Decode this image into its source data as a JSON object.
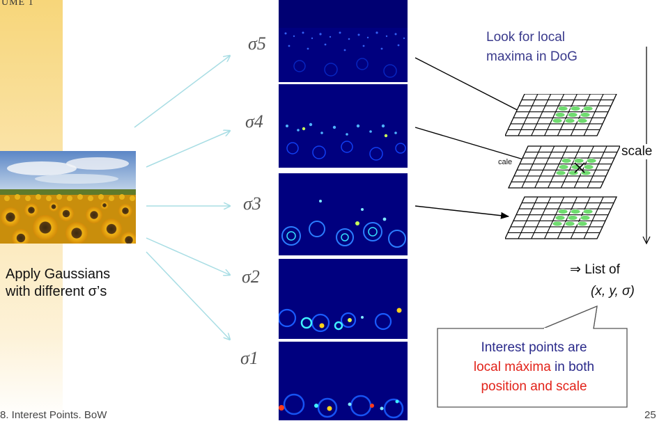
{
  "slide": {
    "header_fragment": "UME 1",
    "footer": "8. Interest Points. BoW",
    "page_number": "25"
  },
  "left": {
    "apply_line1": "Apply Gaussians",
    "apply_line2": "with different σ’s"
  },
  "scales": {
    "sigma5": "σ5",
    "sigma4": "σ4",
    "sigma3": "σ3",
    "sigma2": "σ2",
    "sigma1": "σ1"
  },
  "right": {
    "look_line1": "Look for local",
    "look_line2": "maxima in DoG",
    "scale_label": "scale",
    "scale_small": "cale",
    "list_of": "⇒ List of",
    "coords": "(x, y, σ)"
  },
  "callout": {
    "line1": "Interest points are",
    "line2_red": "local máxima",
    "line2_rest": " in both",
    "line3": "position and scale"
  },
  "colors": {
    "accent_blue": "#2a2a8a",
    "highlight_red": "#e2231a",
    "arrow_cyan": "#a8dde4",
    "dog_background": "#00007f"
  }
}
